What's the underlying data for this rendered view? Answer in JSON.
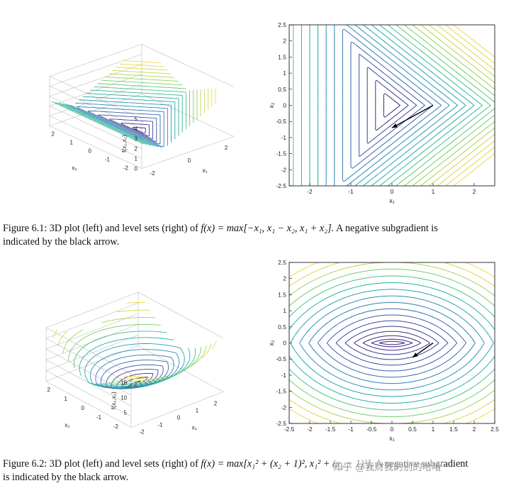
{
  "figures": [
    {
      "id": "fig1",
      "caption": {
        "lead": "Figure 6.1:  3D plot (left) and level sets (right) of",
        "formula": "f(x) = max[−x₁, x₁ − x₂, x₁ + x₂].",
        "tail": "  A negative subgradient is",
        "line2": "indicated by the black arrow."
      },
      "surface_plot": {
        "z_label": "f(x₁,x₂)",
        "x_label": "x₁",
        "y_label": "x₂",
        "z_ticks": [
          "0",
          "1",
          "2",
          "3",
          "4",
          "5"
        ],
        "y_ticks": [
          "2",
          "1",
          "0",
          "-1",
          "-2"
        ],
        "x_ticks": [
          "-2",
          "0",
          "2"
        ]
      },
      "contour_plot": {
        "x_label": "x₁",
        "y_label": "x₂",
        "x_ticks": [
          "-2",
          "-1",
          "0",
          "1",
          "2"
        ],
        "y_ticks": [
          "2.5",
          "2",
          "1.5",
          "1",
          "0.5",
          "0",
          "-0.5",
          "-1",
          "-1.5",
          "-2",
          "-2.5"
        ]
      }
    },
    {
      "id": "fig2",
      "caption": {
        "lead": "Figure 6.2:  3D plot (left) and level sets (right) of",
        "formula": "f(x) = max[x₁² + (x₂ + 1)², x₁² + (x₂ − 1)²].",
        "tail": "  A negative subgradient",
        "line2": "is indicated by the black arrow."
      },
      "surface_plot": {
        "z_label": "f(x₁,x₂)",
        "x_label": "x₁",
        "y_label": "x₂",
        "z_ticks": [
          "5",
          "10",
          "15"
        ],
        "y_ticks": [
          "2",
          "1",
          "0",
          "-1",
          "-2"
        ],
        "x_ticks": [
          "-2",
          "-1",
          "0",
          "1",
          "2"
        ]
      },
      "contour_plot": {
        "x_label": "x₁",
        "y_label": "x₂",
        "x_ticks": [
          "-2.5",
          "-2",
          "-1.5",
          "-1",
          "-0.5",
          "0",
          "0.5",
          "1",
          "1.5",
          "2",
          "2.5"
        ],
        "y_ticks": [
          "2.5",
          "2",
          "1.5",
          "1",
          "0.5",
          "0",
          "-0.5",
          "-1",
          "-1.5",
          "-2",
          "-2.5"
        ]
      }
    }
  ],
  "watermark": "知乎 @我财我的别的哈哈",
  "chart_data": [
    {
      "type": "contour",
      "function": "max[-x1, x1 - x2, x1 + x2]",
      "xlim": [
        -2.5,
        2.5
      ],
      "ylim": [
        -2.5,
        2.5
      ],
      "levels": [
        0.2,
        0.4,
        0.6,
        0.8,
        1.0,
        1.2,
        1.4,
        1.6,
        1.8,
        2.0,
        2.2,
        2.4,
        2.6,
        2.8,
        3.0,
        3.2,
        3.4,
        3.6,
        3.8,
        4.0
      ],
      "arrow": {
        "from": [
          1,
          0
        ],
        "to": [
          0,
          -0.7
        ]
      },
      "colormap": [
        "#3b1e7c",
        "#3d58a8",
        "#2a8fb5",
        "#22b5a0",
        "#6dcd6a",
        "#c8d64a",
        "#f2d846"
      ]
    },
    {
      "type": "contour",
      "function": "max[x1^2 + (x2+1)^2, x1^2 + (x2-1)^2]",
      "xlim": [
        -2.5,
        2.5
      ],
      "ylim": [
        -2.5,
        2.5
      ],
      "levels": [
        1.1,
        1.25,
        1.5,
        1.85,
        2.3,
        2.85,
        3.5,
        4.25,
        5.1,
        6.05,
        7.1,
        8.25,
        9.5,
        10.85,
        12.3,
        13.85,
        15.5
      ],
      "arrow": {
        "from": [
          1,
          0
        ],
        "to": [
          0.5,
          -0.45
        ]
      },
      "colormap": [
        "#3b1e7c",
        "#3d58a8",
        "#2a8fb5",
        "#22b5a0",
        "#6dcd6a",
        "#c8d64a",
        "#f2d846"
      ]
    }
  ]
}
